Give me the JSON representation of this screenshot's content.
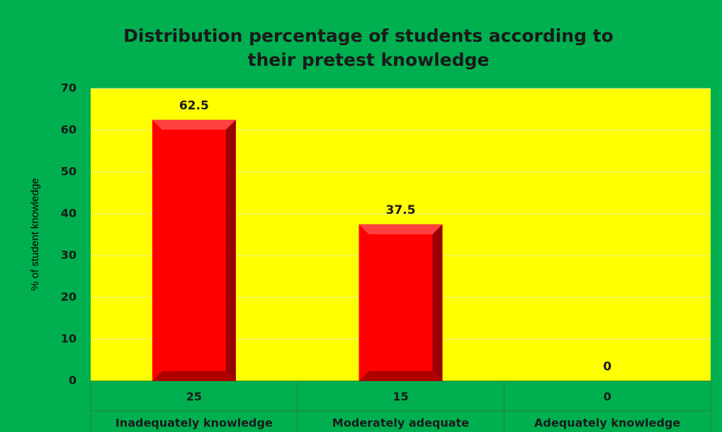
{
  "chart_data": {
    "type": "bar",
    "title": [
      "Distribution percentage of students according to",
      "their pretest knowledge"
    ],
    "y_label": "% of student knowledge",
    "categories": [
      "Inadequately knowledge",
      "Moderately adequate",
      "Adequately knowledge"
    ],
    "counts": [
      25,
      15,
      0
    ],
    "values": [
      62.5,
      37.5,
      0
    ],
    "color": "#ff0000",
    "ylim": [
      0,
      70
    ],
    "yticks": [
      0,
      10,
      20,
      30,
      40,
      50,
      60,
      70
    ],
    "grid": true
  }
}
